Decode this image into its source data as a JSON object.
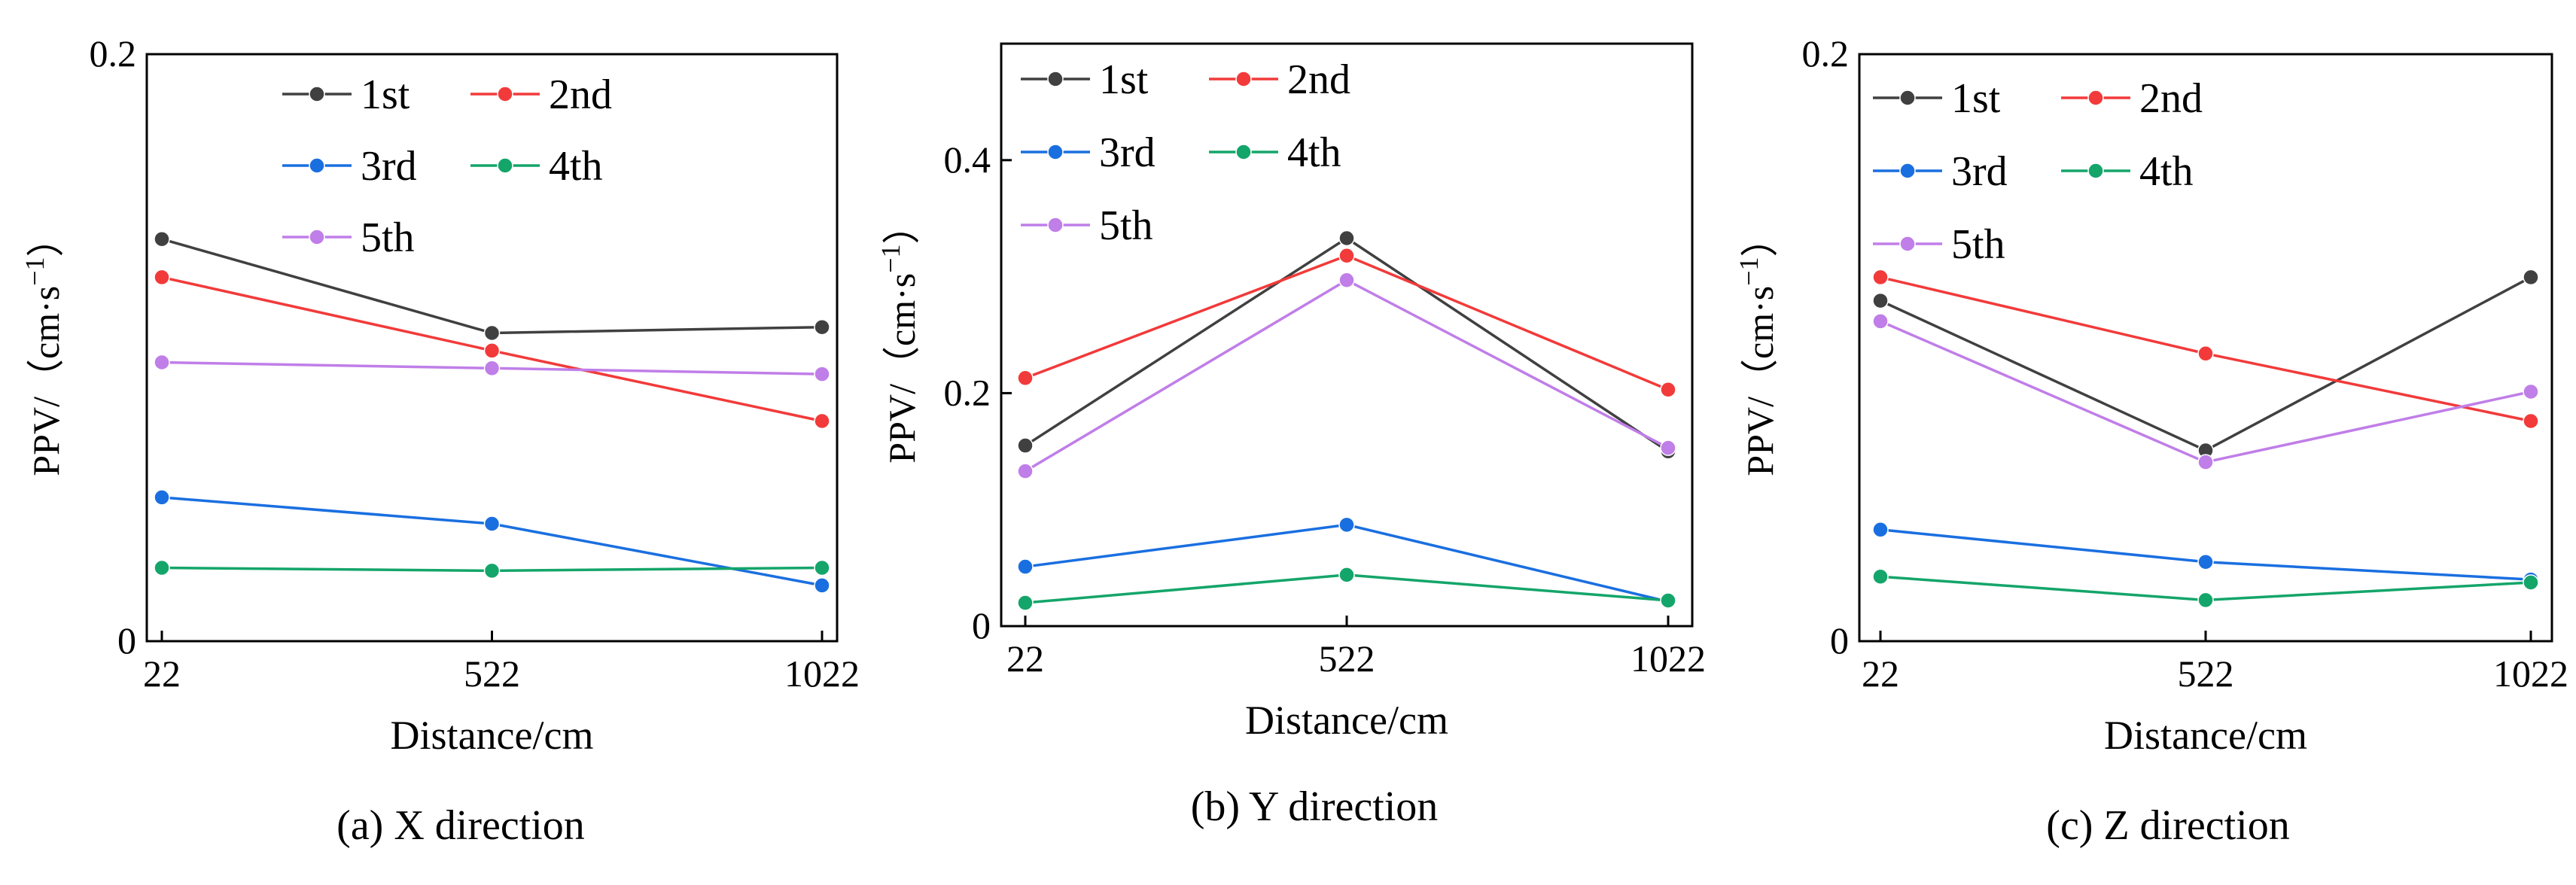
{
  "figure": {
    "series_colors": {
      "1st": "#404040",
      "2nd": "#f23a3a",
      "3rd": "#1a6fe0",
      "4th": "#14a56a",
      "5th": "#c07ee8"
    }
  },
  "chart_data": [
    {
      "type": "line",
      "caption": "(a) X direction",
      "xlabel": "Distance/cm",
      "ylabel_main": "PPV/（cm·s",
      "ylabel_sup": "−1",
      "ylabel_close": "）",
      "categories": [
        "22",
        "522",
        "1022"
      ],
      "ylim": [
        0,
        0.2
      ],
      "yticks": [
        0,
        0.2
      ],
      "ytick_labels": [
        "0",
        "0.2"
      ],
      "legend": [
        "1st",
        "2nd",
        "3rd",
        "4th",
        "5th"
      ],
      "series": [
        {
          "name": "1st",
          "values": [
            0.137,
            0.105,
            0.107
          ]
        },
        {
          "name": "2nd",
          "values": [
            0.124,
            0.099,
            0.075
          ]
        },
        {
          "name": "3rd",
          "values": [
            0.049,
            0.04,
            0.019
          ]
        },
        {
          "name": "4th",
          "values": [
            0.025,
            0.024,
            0.025
          ]
        },
        {
          "name": "5th",
          "values": [
            0.095,
            0.093,
            0.091
          ]
        }
      ]
    },
    {
      "type": "line",
      "caption": "(b) Y direction",
      "xlabel": "Distance/cm",
      "ylabel_main": "PPV/（cm·s",
      "ylabel_sup": "−1",
      "ylabel_close": "）",
      "categories": [
        "22",
        "522",
        "1022"
      ],
      "ylim": [
        0,
        0.5
      ],
      "yticks": [
        0,
        0.2,
        0.4
      ],
      "ytick_labels": [
        "0",
        "0.2",
        "0.4"
      ],
      "legend": [
        "1st",
        "2nd",
        "3rd",
        "4th",
        "5th"
      ],
      "series": [
        {
          "name": "1st",
          "values": [
            0.155,
            0.333,
            0.15
          ]
        },
        {
          "name": "2nd",
          "values": [
            0.213,
            0.318,
            0.203
          ]
        },
        {
          "name": "3rd",
          "values": [
            0.051,
            0.087,
            0.021
          ]
        },
        {
          "name": "4th",
          "values": [
            0.02,
            0.044,
            0.022
          ]
        },
        {
          "name": "5th",
          "values": [
            0.133,
            0.297,
            0.153
          ]
        }
      ]
    },
    {
      "type": "line",
      "caption": "(c) Z direction",
      "xlabel": "Distance/cm",
      "ylabel_main": "PPV/（cm·s",
      "ylabel_sup": "−1",
      "ylabel_close": "）",
      "categories": [
        "22",
        "522",
        "1022"
      ],
      "ylim": [
        0,
        0.2
      ],
      "yticks": [
        0,
        0.2
      ],
      "ytick_labels": [
        "0",
        "0.2"
      ],
      "legend": [
        "1st",
        "2nd",
        "3rd",
        "4th",
        "5th"
      ],
      "series": [
        {
          "name": "1st",
          "values": [
            0.116,
            0.065,
            0.124
          ]
        },
        {
          "name": "2nd",
          "values": [
            0.124,
            0.098,
            0.075
          ]
        },
        {
          "name": "3rd",
          "values": [
            0.038,
            0.027,
            0.021
          ]
        },
        {
          "name": "4th",
          "values": [
            0.022,
            0.014,
            0.02
          ]
        },
        {
          "name": "5th",
          "values": [
            0.109,
            0.061,
            0.085
          ]
        }
      ]
    }
  ]
}
